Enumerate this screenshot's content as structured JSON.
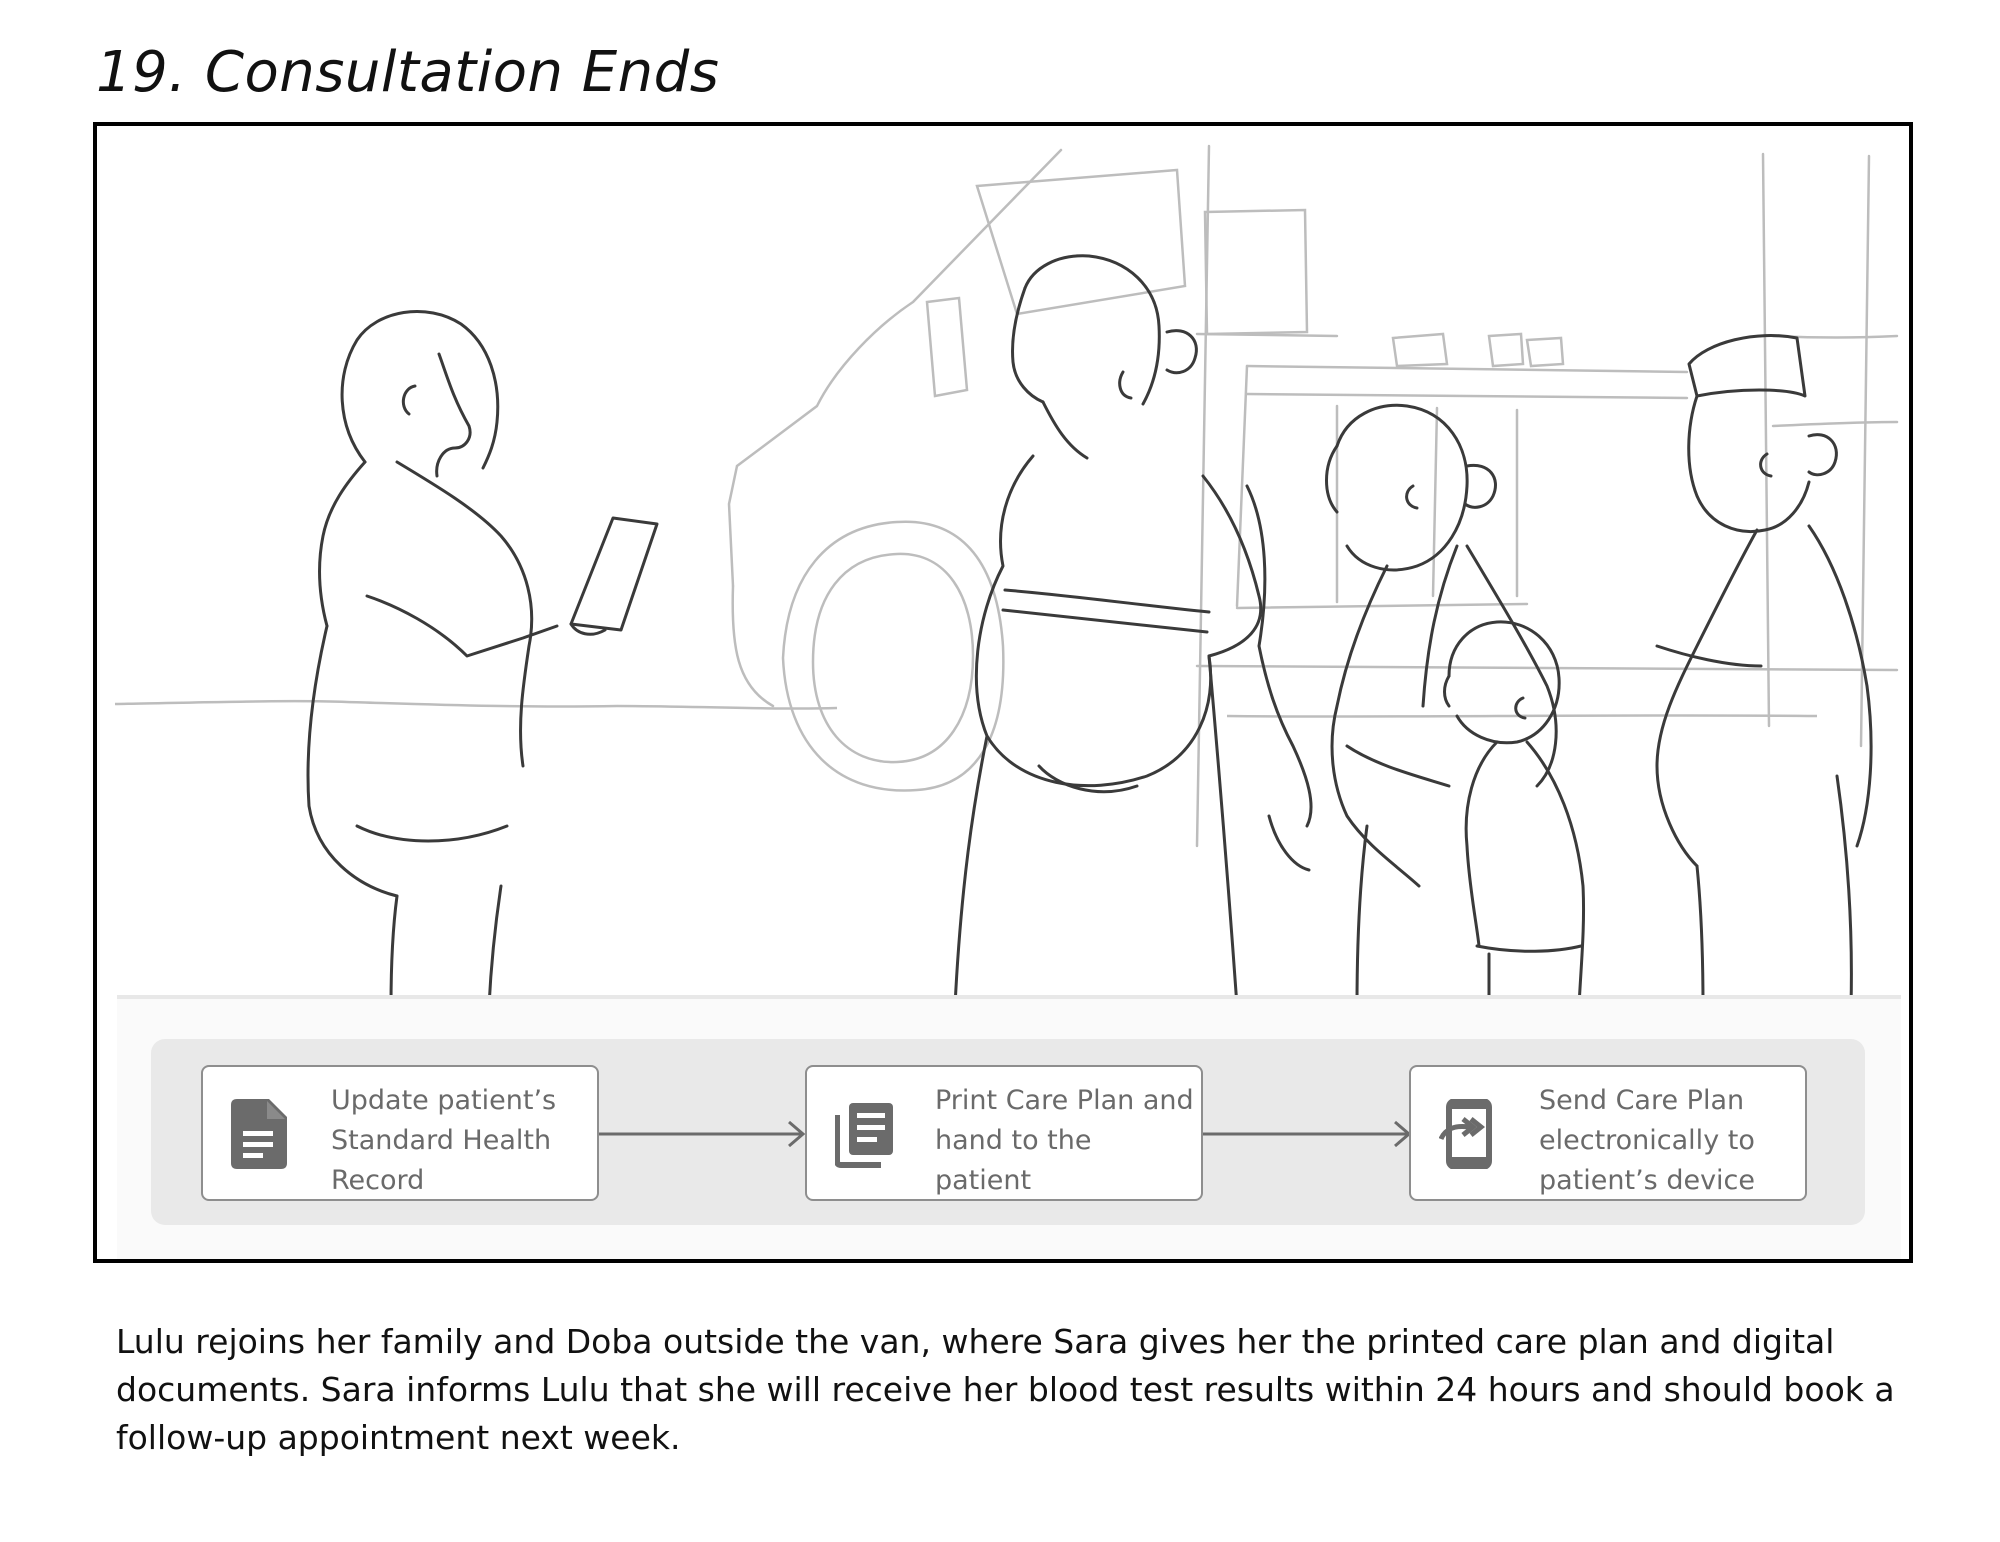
{
  "title": "19. Consultation Ends",
  "flow": {
    "steps": [
      {
        "label": "Update patient’s Standard Health Record",
        "icon": "document-icon"
      },
      {
        "label": "Print Care Plan and hand to the patient",
        "icon": "print-copies-icon"
      },
      {
        "label": "Send Care Plan electronically to patient’s device",
        "icon": "send-to-mobile-icon"
      }
    ]
  },
  "caption": "Lulu rejoins her family and Doba outside the van, where Sara gives her the printed care plan and digital documents. Sara informs Lulu that she will receive her blood test results within 24 hours and should book a follow-up appointment next week.",
  "colors": {
    "frame_border": "#000000",
    "panel_bg": "#e9e9e9",
    "step_border": "#8e8e8e",
    "step_text": "#6a6a6a",
    "icon": "#6b6b6b",
    "van_line": "#bdbdbd",
    "figure_line": "#3a3a3a"
  }
}
